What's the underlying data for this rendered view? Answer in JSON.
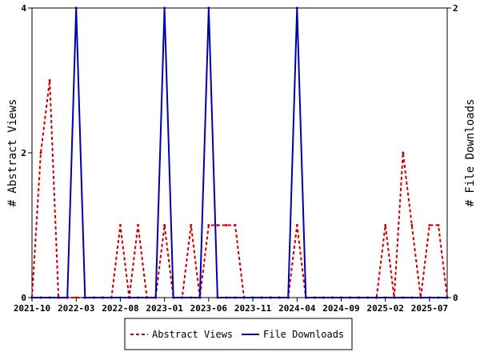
{
  "chart_data": {
    "type": "line",
    "ylabel": "# Abstract Views",
    "y2label": "# File Downloads",
    "ylim": [
      0,
      4
    ],
    "y2lim": [
      0,
      2
    ],
    "yticks": [
      "0",
      "2",
      "4"
    ],
    "y2ticks": [
      "0",
      "2"
    ],
    "xticks": [
      "2021-10",
      "2022-03",
      "2022-08",
      "2023-01",
      "2023-06",
      "2023-11",
      "2024-04",
      "2024-09",
      "2025-02",
      "2025-07"
    ],
    "x": [
      "2021-10",
      "2021-11",
      "2021-12",
      "2022-01",
      "2022-02",
      "2022-03",
      "2022-04",
      "2022-05",
      "2022-06",
      "2022-07",
      "2022-08",
      "2022-09",
      "2022-10",
      "2022-11",
      "2022-12",
      "2023-01",
      "2023-02",
      "2023-03",
      "2023-04",
      "2023-05",
      "2023-06",
      "2023-07",
      "2023-08",
      "2023-09",
      "2023-10",
      "2023-11",
      "2023-12",
      "2024-01",
      "2024-02",
      "2024-03",
      "2024-04",
      "2024-05",
      "2024-06",
      "2024-07",
      "2024-08",
      "2024-09",
      "2024-10",
      "2024-11",
      "2024-12",
      "2025-01",
      "2025-02",
      "2025-03",
      "2025-04",
      "2025-05",
      "2025-06",
      "2025-07",
      "2025-08",
      "2025-09"
    ],
    "series": [
      {
        "name": "Abstract Views",
        "axis": "left",
        "color": "#cc0000",
        "style": "dashed",
        "values": [
          0,
          2,
          3,
          0,
          0,
          0,
          0,
          0,
          0,
          0,
          1,
          0,
          1,
          0,
          0,
          1,
          0,
          0,
          1,
          0,
          1,
          1,
          1,
          1,
          0,
          0,
          0,
          0,
          0,
          0,
          1,
          0,
          0,
          0,
          0,
          0,
          0,
          0,
          0,
          0,
          1,
          0,
          2,
          1,
          0,
          1,
          1,
          0
        ]
      },
      {
        "name": "File Downloads",
        "axis": "right",
        "color": "#0000aa",
        "style": "solid",
        "values": [
          0,
          0,
          0,
          0,
          0,
          2,
          0,
          0,
          0,
          0,
          0,
          0,
          0,
          0,
          0,
          2,
          0,
          0,
          0,
          0,
          2,
          0,
          0,
          0,
          0,
          0,
          0,
          0,
          0,
          0,
          2,
          0,
          0,
          0,
          0,
          0,
          0,
          0,
          0,
          0,
          0,
          0,
          0,
          0,
          0,
          0,
          0,
          0
        ]
      }
    ],
    "legend": "bottom"
  }
}
